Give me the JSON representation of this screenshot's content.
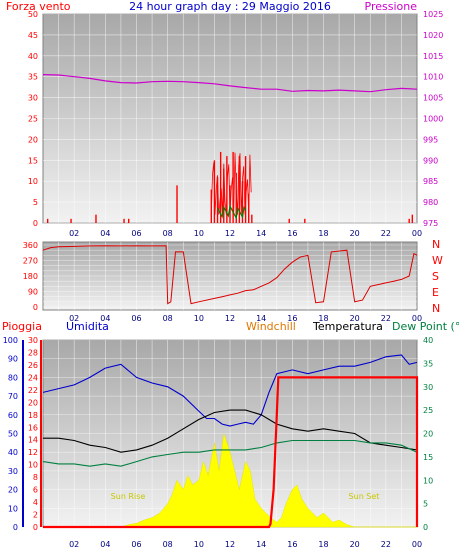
{
  "chart_data": [
    {
      "type": "line",
      "title": "24 hour graph day : 29 Maggio 2016",
      "left_label": "Forza vento",
      "right_label": "Pressione",
      "colors": {
        "wind": "#ff0000",
        "gust": "#ff0000",
        "direction_small": "#008000",
        "pressure": "#cc00cc",
        "title": "#0000cc"
      },
      "x_ticks": [
        "02",
        "04",
        "06",
        "08",
        "10",
        "12",
        "14",
        "16",
        "18",
        "20",
        "22",
        "00"
      ],
      "ylim_left": [
        0,
        50
      ],
      "yticks_left": [
        0,
        5,
        10,
        15,
        20,
        25,
        30,
        35,
        40,
        45,
        50
      ],
      "ylim_right": [
        975,
        1025
      ],
      "yticks_right": [
        975,
        980,
        985,
        990,
        995,
        1000,
        1005,
        1010,
        1015,
        1020,
        1025
      ],
      "series": [
        {
          "name": "Pressione",
          "axis": "right",
          "x": [
            0,
            1,
            2,
            3,
            4,
            5,
            6,
            7,
            8,
            9,
            10,
            11,
            12,
            13,
            14,
            15,
            16,
            17,
            18,
            19,
            20,
            21,
            22,
            23,
            24
          ],
          "values": [
            1010.5,
            1010.4,
            1010.0,
            1009.6,
            1009.0,
            1008.6,
            1008.5,
            1008.8,
            1008.9,
            1008.8,
            1008.6,
            1008.3,
            1007.8,
            1007.4,
            1007.0,
            1007.0,
            1006.5,
            1006.7,
            1006.6,
            1006.8,
            1006.6,
            1006.4,
            1006.9,
            1007.2,
            1007.0
          ]
        },
        {
          "name": "Forza vento",
          "axis": "left",
          "x": [
            0.3,
            1.8,
            3.4,
            5.2,
            5.5,
            8.6,
            10.8,
            11.0,
            11.2,
            11.4,
            11.6,
            11.8,
            12.0,
            12.2,
            12.4,
            12.6,
            12.8,
            13.0,
            13.2,
            13.4,
            15.8,
            16.8,
            23.5,
            23.7
          ],
          "values": [
            1,
            1,
            2,
            1,
            1,
            9,
            8,
            15,
            11,
            17,
            13,
            16,
            9,
            17,
            12,
            16,
            10,
            16,
            7,
            2,
            1,
            1,
            1,
            2
          ]
        }
      ]
    },
    {
      "type": "line",
      "right_letters": [
        "N",
        "W",
        "S",
        "E",
        "N"
      ],
      "x_ticks": [
        "02",
        "04",
        "06",
        "08",
        "10",
        "12",
        "14",
        "16",
        "18",
        "20",
        "22",
        "00"
      ],
      "ylim": [
        0,
        360
      ],
      "yticks": [
        0,
        30,
        60,
        90,
        120,
        150,
        180,
        210,
        240,
        270,
        300,
        330,
        360
      ],
      "ytick_labels_shown": [
        0,
        90,
        180,
        270,
        360
      ],
      "series": [
        {
          "name": "direction",
          "x": [
            0,
            0.5,
            1,
            2,
            3,
            4,
            5,
            6,
            7,
            7.9,
            8.0,
            8.2,
            8.5,
            9.0,
            9.5,
            10,
            11,
            11.5,
            12,
            12.5,
            13,
            13.5,
            14,
            14.5,
            15,
            15.5,
            16,
            16.5,
            17,
            17.5,
            18,
            18.5,
            19,
            19.5,
            20,
            20.5,
            21,
            21.5,
            22,
            22.5,
            23,
            23.5,
            23.8,
            24
          ],
          "values": [
            330,
            345,
            350,
            352,
            355,
            356,
            355,
            356,
            355,
            356,
            20,
            30,
            320,
            320,
            20,
            30,
            50,
            60,
            70,
            80,
            95,
            100,
            120,
            140,
            170,
            220,
            260,
            290,
            300,
            25,
            30,
            320,
            325,
            330,
            30,
            40,
            120,
            130,
            140,
            150,
            160,
            180,
            310,
            300
          ]
        }
      ]
    },
    {
      "type": "line",
      "legend": {
        "left_title": "Pioggia",
        "humidity": "Umidita",
        "windchill": "Windchill",
        "temperature": "Temperatura",
        "dewpoint": "Dew Point (°C"
      },
      "annotations": {
        "sunrise": "Sun Rise",
        "sunset": "Sun Set"
      },
      "x_ticks": [
        "02",
        "04",
        "06",
        "08",
        "10",
        "12",
        "14",
        "16",
        "18",
        "20",
        "22",
        "00"
      ],
      "ylim_humidity": [
        0,
        100
      ],
      "yticks_humidity": [
        0,
        10,
        20,
        30,
        40,
        50,
        60,
        70,
        80,
        90,
        100
      ],
      "ylim_rain": [
        0,
        30
      ],
      "yticks_rain": [
        0,
        2,
        4,
        6,
        8,
        10,
        12,
        14,
        16,
        18,
        20,
        22,
        24,
        26,
        28,
        30
      ],
      "ylim_temp": [
        0,
        40
      ],
      "yticks_temp": [
        0,
        5,
        10,
        15,
        20,
        25,
        30,
        35,
        40
      ],
      "series": [
        {
          "name": "Umidita",
          "axis": "humidity",
          "x": [
            0,
            1,
            2,
            3,
            4,
            5,
            6,
            7,
            8,
            9,
            10,
            10.5,
            11,
            11.5,
            12,
            12.5,
            13,
            13.5,
            14,
            14.5,
            15,
            16,
            17,
            18,
            19,
            20,
            21,
            22,
            23,
            23.5,
            24
          ],
          "values": [
            72,
            74,
            76,
            80,
            85,
            87,
            80,
            77,
            75,
            70,
            62,
            58,
            58,
            55,
            54,
            55,
            56,
            55,
            60,
            72,
            82,
            84,
            82,
            84,
            86,
            86,
            88,
            91,
            92,
            87,
            88
          ]
        },
        {
          "name": "Temperatura",
          "axis": "temp",
          "x": [
            0,
            1,
            2,
            3,
            4,
            5,
            6,
            7,
            8,
            9,
            10,
            11,
            12,
            13,
            14,
            15,
            16,
            17,
            18,
            19,
            20,
            21,
            22,
            23,
            24
          ],
          "values": [
            19,
            19,
            18.5,
            17.5,
            17,
            16,
            16.5,
            17.5,
            19,
            21,
            23,
            24.5,
            25,
            25,
            24,
            22,
            21,
            20.5,
            21,
            20.5,
            20,
            18,
            17.5,
            17,
            16.5
          ]
        },
        {
          "name": "Dew Point",
          "axis": "temp",
          "x": [
            0,
            1,
            2,
            3,
            4,
            5,
            6,
            7,
            8,
            9,
            10,
            11,
            12,
            13,
            14,
            15,
            16,
            17,
            18,
            19,
            20,
            21,
            22,
            23,
            24
          ],
          "values": [
            14,
            13.5,
            13.5,
            13,
            13.5,
            13,
            14,
            15,
            15.5,
            16,
            16,
            16.5,
            16.5,
            16.5,
            17,
            18,
            18.5,
            18.5,
            18.5,
            18.5,
            18.5,
            18,
            18,
            17.5,
            16
          ]
        },
        {
          "name": "Pioggia",
          "axis": "rain",
          "x": [
            0,
            14.5,
            14.6,
            14.8,
            15.0,
            15.1,
            24,
            24
          ],
          "values": [
            0,
            0,
            0.5,
            6,
            18,
            24,
            24,
            0
          ]
        },
        {
          "name": "solar",
          "axis": "temp",
          "x": [
            0,
            5,
            5.5,
            6,
            6.5,
            7,
            7.5,
            8,
            8.3,
            8.6,
            9,
            9.3,
            9.6,
            10,
            10.3,
            10.6,
            11,
            11.3,
            11.6,
            12,
            12.3,
            12.6,
            13,
            13.3,
            13.6,
            14,
            14.3,
            14.6,
            15,
            15.3,
            15.6,
            16,
            16.3,
            16.6,
            17,
            17.3,
            17.6,
            18,
            18.3,
            18.6,
            19,
            19.5,
            20,
            24
          ],
          "values": [
            0,
            0,
            0.5,
            0.8,
            1.5,
            2,
            3,
            5,
            7,
            10,
            8,
            11,
            9,
            10,
            14,
            11,
            18,
            12,
            20,
            16,
            12,
            8,
            14,
            12,
            6,
            4,
            3,
            2,
            1,
            2,
            5,
            8,
            9,
            6,
            4,
            3,
            2,
            3,
            2,
            1,
            1.5,
            0.5,
            0,
            0
          ]
        }
      ]
    }
  ]
}
